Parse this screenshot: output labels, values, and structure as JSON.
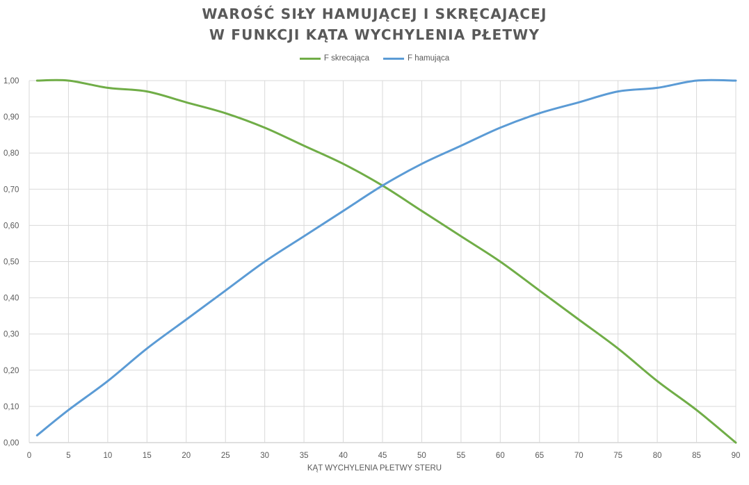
{
  "chart_data": {
    "type": "line",
    "title": [
      "WAROŚĆ SIŁY HAMUJĄCEJ I SKRĘCAJĄCEJ",
      "W FUNKCJI KĄTA WYCHYLENIA PŁETWY"
    ],
    "xlabel": "KĄT WYCHYLENIA PŁETWY STERU",
    "ylabel": "",
    "xlim": [
      0,
      90
    ],
    "ylim": [
      0,
      1
    ],
    "x_ticks": [
      0,
      5,
      10,
      15,
      20,
      25,
      30,
      35,
      40,
      45,
      50,
      55,
      60,
      65,
      70,
      75,
      80,
      85,
      90
    ],
    "y_tick_labels": [
      "0,00",
      "0,10",
      "0,20",
      "0,30",
      "0,40",
      "0,50",
      "0,60",
      "0,70",
      "0,80",
      "0,90",
      "1,00"
    ],
    "grid": true,
    "legend_position": "top-center",
    "x": [
      1,
      5,
      10,
      15,
      20,
      25,
      30,
      35,
      40,
      45,
      50,
      55,
      60,
      65,
      70,
      75,
      80,
      85,
      90
    ],
    "series": [
      {
        "name": "F skrecająca",
        "color": "#70ad47",
        "values": [
          1.0,
          1.0,
          0.98,
          0.97,
          0.94,
          0.91,
          0.87,
          0.82,
          0.77,
          0.71,
          0.64,
          0.57,
          0.5,
          0.42,
          0.34,
          0.26,
          0.17,
          0.09,
          0.0
        ]
      },
      {
        "name": "F hamująca",
        "color": "#5b9bd5",
        "values": [
          0.02,
          0.09,
          0.17,
          0.26,
          0.34,
          0.42,
          0.5,
          0.57,
          0.64,
          0.71,
          0.77,
          0.82,
          0.87,
          0.91,
          0.94,
          0.97,
          0.98,
          1.0,
          1.0
        ]
      }
    ]
  }
}
